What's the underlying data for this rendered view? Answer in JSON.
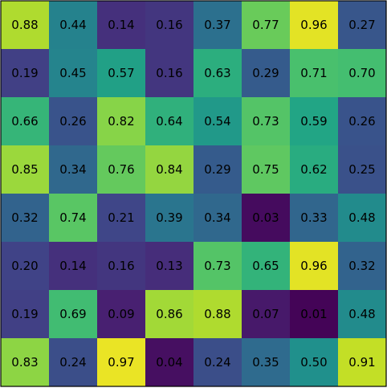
{
  "chart_data": {
    "type": "heatmap",
    "title": "",
    "xlabel": "",
    "ylabel": "",
    "rows": 8,
    "cols": 8,
    "values": [
      [
        0.88,
        0.44,
        0.14,
        0.16,
        0.37,
        0.77,
        0.96,
        0.27
      ],
      [
        0.19,
        0.45,
        0.57,
        0.16,
        0.63,
        0.29,
        0.71,
        0.7
      ],
      [
        0.66,
        0.26,
        0.82,
        0.64,
        0.54,
        0.73,
        0.59,
        0.26
      ],
      [
        0.85,
        0.34,
        0.76,
        0.84,
        0.29,
        0.75,
        0.62,
        0.25
      ],
      [
        0.32,
        0.74,
        0.21,
        0.39,
        0.34,
        0.03,
        0.33,
        0.48
      ],
      [
        0.2,
        0.14,
        0.16,
        0.13,
        0.73,
        0.65,
        0.96,
        0.32
      ],
      [
        0.19,
        0.69,
        0.09,
        0.86,
        0.88,
        0.07,
        0.01,
        0.48
      ],
      [
        0.83,
        0.24,
        0.97,
        0.04,
        0.24,
        0.35,
        0.5,
        0.91
      ]
    ],
    "labels": [
      [
        "0.88",
        "0.44",
        "0.14",
        "0.16",
        "0.37",
        "0.77",
        "0.96",
        "0.27"
      ],
      [
        "0.19",
        "0.45",
        "0.57",
        "0.16",
        "0.63",
        "0.29",
        "0.71",
        "0.70"
      ],
      [
        "0.66",
        "0.26",
        "0.82",
        "0.64",
        "0.54",
        "0.73",
        "0.59",
        "0.26"
      ],
      [
        "0.85",
        "0.34",
        "0.76",
        "0.84",
        "0.29",
        "0.75",
        "0.62",
        "0.25"
      ],
      [
        "0.32",
        "0.74",
        "0.21",
        "0.39",
        "0.34",
        "0.03",
        "0.33",
        "0.48"
      ],
      [
        "0.20",
        "0.14",
        "0.16",
        "0.13",
        "0.73",
        "0.65",
        "0.96",
        "0.32"
      ],
      [
        "0.19",
        "0.69",
        "0.09",
        "0.86",
        "0.88",
        "0.07",
        "0.01",
        "0.48"
      ],
      [
        "0.83",
        "0.24",
        "0.97",
        "0.04",
        "0.24",
        "0.35",
        "0.50",
        "0.91"
      ]
    ],
    "value_range": [
      0,
      1
    ],
    "colormap": "viridis",
    "grid": false,
    "legend": "none",
    "label_color": "#000000",
    "border_color": "#000000"
  }
}
